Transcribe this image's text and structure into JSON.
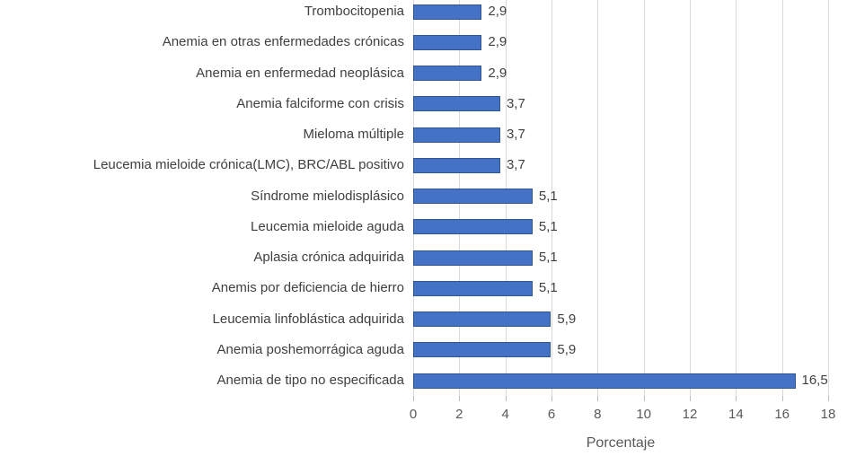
{
  "chart_data": {
    "type": "bar",
    "orientation": "horizontal",
    "title": "",
    "xlabel": "Porcentaje",
    "ylabel": "",
    "xlim": [
      0,
      18
    ],
    "xticks": [
      0,
      2,
      4,
      6,
      8,
      10,
      12,
      14,
      16,
      18
    ],
    "xtick_labels": [
      "0",
      "2",
      "4",
      "6",
      "8",
      "10",
      "12",
      "14",
      "16",
      "18"
    ],
    "grid": true,
    "legend": false,
    "categories": [
      "Trombocitopenia",
      "Anemia en otras enfermedades crónicas",
      "Anemia en enfermedad neoplásica",
      "Anemia falciforme con crisis",
      "Mieloma múltiple",
      "Leucemia mieloide crónica(LMC), BRC/ABL positivo",
      "Síndrome mielodisplásico",
      "Leucemia mieloide aguda",
      "Aplasia crónica adquirida",
      "Anemis por deficiencia de hierro",
      "Leucemia linfoblástica adquirida",
      "Anemia poshemorrágica aguda",
      "Anemia de tipo no especificada"
    ],
    "values": [
      2.9,
      2.9,
      2.9,
      3.7,
      3.7,
      3.7,
      5.1,
      5.1,
      5.1,
      5.1,
      5.9,
      5.9,
      16.5
    ],
    "value_labels": [
      "2,9",
      "2,9",
      "2,9",
      "3,7",
      "3,7",
      "3,7",
      "5,1",
      "5,1",
      "5,1",
      "5,1",
      "5,9",
      "5,9",
      "16,5"
    ],
    "colors": {
      "bar_fill": "#4472c4",
      "bar_border": "#2f5597",
      "gridline": "#d9d9d9",
      "tick_mark": "#bfbfbf",
      "category_text": "#404040",
      "value_text": "#404040",
      "axis_text": "#595959"
    }
  }
}
